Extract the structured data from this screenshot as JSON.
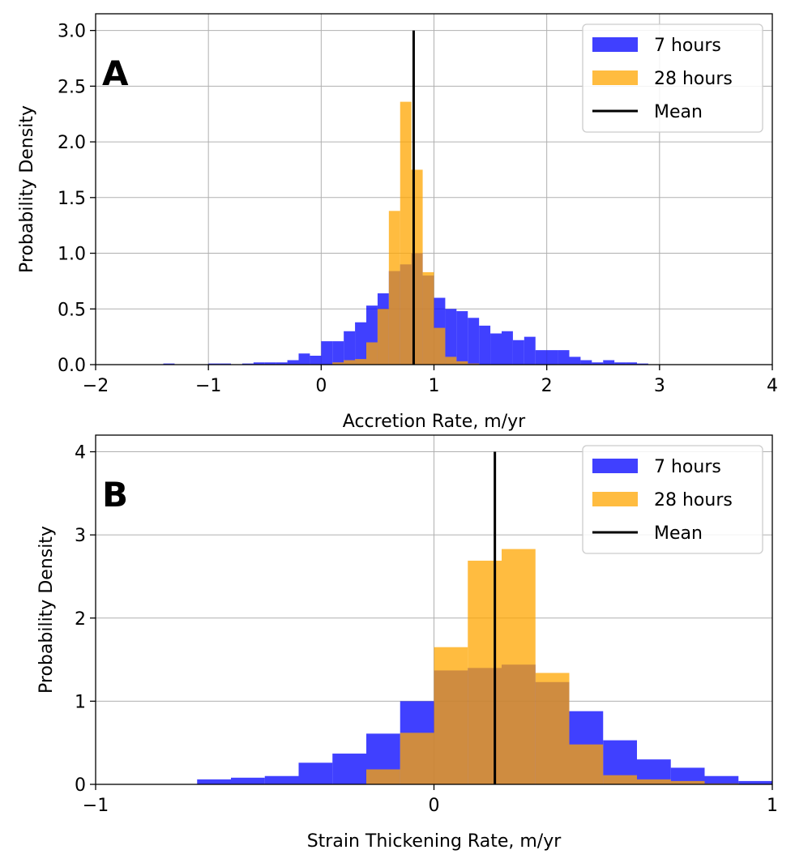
{
  "chart_data": [
    {
      "type": "histogram",
      "panel_label": "A",
      "xlabel": "Accretion Rate, m/yr",
      "ylabel": "Probability Density",
      "xlim": [
        -2,
        4
      ],
      "ylim": [
        0,
        3.15
      ],
      "xticks": [
        -2,
        -1,
        0,
        1,
        2,
        3,
        4
      ],
      "xtick_labels": [
        "−2",
        "−1",
        "0",
        "1",
        "2",
        "3",
        "4"
      ],
      "yticks": [
        0,
        0.5,
        1,
        1.5,
        2,
        2.5,
        3
      ],
      "ytick_labels": [
        "0.0",
        "0.5",
        "1.0",
        "1.5",
        "2.0",
        "2.5",
        "3.0"
      ],
      "grid": true,
      "legend_position": "top-right",
      "colors": {
        "s7": "#0000ff",
        "s28": "#ffa500",
        "mean": "#000000"
      },
      "series": [
        {
          "name": "7 hours",
          "bin_start": -1.4,
          "bin_width": 0.1,
          "values": [
            0.01,
            0,
            0,
            0,
            0.01,
            0.01,
            0,
            0.01,
            0.02,
            0.02,
            0.02,
            0.04,
            0.1,
            0.08,
            0.21,
            0.21,
            0.3,
            0.38,
            0.53,
            0.64,
            0.84,
            0.9,
            1.0,
            0.8,
            0.6,
            0.5,
            0.48,
            0.42,
            0.35,
            0.28,
            0.3,
            0.22,
            0.25,
            0.13,
            0.13,
            0.13,
            0.07,
            0.04,
            0.02,
            0.04,
            0.02,
            0.02,
            0.01
          ]
        },
        {
          "name": "28 hours",
          "bin_start": 0.1,
          "bin_width": 0.1,
          "values": [
            0.02,
            0.04,
            0.05,
            0.2,
            0.5,
            1.38,
            2.36,
            1.75,
            0.83,
            0.33,
            0.07,
            0.03,
            0.01
          ]
        }
      ],
      "mean": {
        "name": "Mean",
        "x": 0.82,
        "y_top": 3.0
      }
    },
    {
      "type": "histogram",
      "panel_label": "B",
      "xlabel": "Strain Thickening Rate, m/yr",
      "ylabel": "Probability Density",
      "xlim": [
        -1,
        1
      ],
      "ylim": [
        0,
        4.2
      ],
      "xticks": [
        -1,
        0,
        1
      ],
      "xtick_labels": [
        "−1",
        "0",
        "1"
      ],
      "yticks": [
        0,
        1,
        2,
        3,
        4
      ],
      "ytick_labels": [
        "0",
        "1",
        "2",
        "3",
        "4"
      ],
      "grid": true,
      "legend_position": "top-right",
      "colors": {
        "s7": "#0000ff",
        "s28": "#ffa500",
        "mean": "#000000"
      },
      "series": [
        {
          "name": "7 hours",
          "bin_start": -0.7,
          "bin_width": 0.1,
          "values": [
            0.06,
            0.08,
            0.1,
            0.26,
            0.37,
            0.61,
            1.0,
            1.37,
            1.4,
            1.44,
            1.23,
            0.88,
            0.53,
            0.3,
            0.2,
            0.1,
            0.04
          ]
        },
        {
          "name": "28 hours",
          "bin_start": -0.2,
          "bin_width": 0.1,
          "values": [
            0.18,
            0.62,
            1.65,
            2.69,
            2.83,
            1.34,
            0.48,
            0.11,
            0.06,
            0.04,
            0.01
          ]
        }
      ],
      "mean": {
        "name": "Mean",
        "x": 0.18,
        "y_top": 4.0
      }
    }
  ]
}
